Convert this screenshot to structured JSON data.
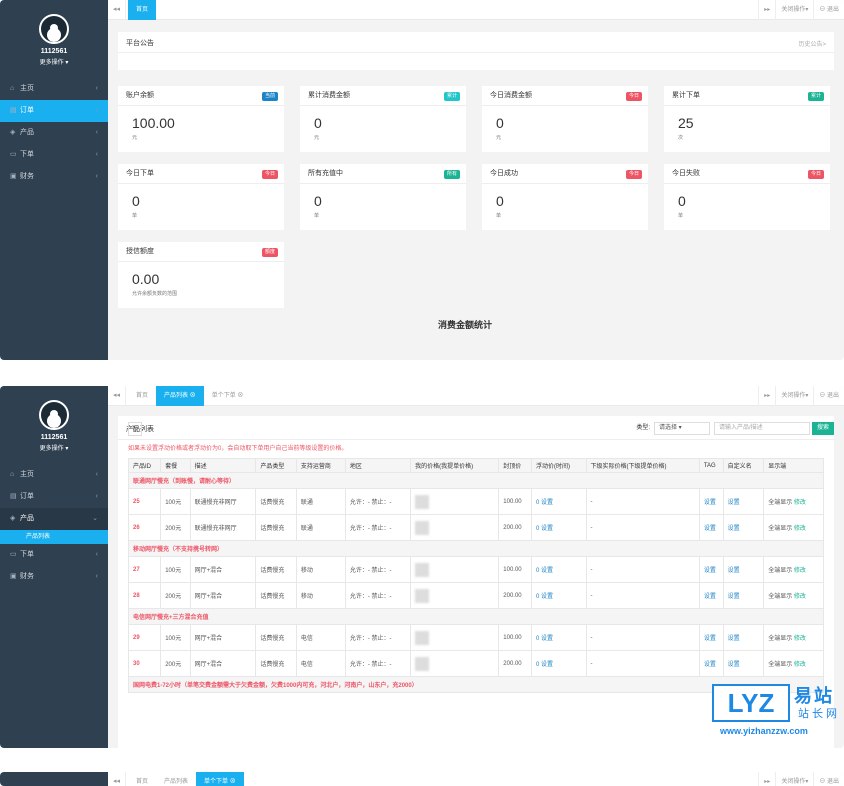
{
  "panel1": {
    "sidebar": {
      "user": "1112561",
      "more": "更多操作 ▾",
      "menu": [
        {
          "icon": "home-icon",
          "glyph": "⌂",
          "label": "主页"
        },
        {
          "icon": "order-icon",
          "glyph": "▤",
          "label": "订单"
        },
        {
          "icon": "cube-icon",
          "glyph": "◈",
          "label": "产品"
        },
        {
          "icon": "cart-icon",
          "glyph": "▭",
          "label": "下单"
        },
        {
          "icon": "finance-icon",
          "glyph": "▣",
          "label": "财务"
        }
      ]
    },
    "tabs": [
      "首页"
    ],
    "right": {
      "nav": "▸▸",
      "close_ops": "关闭操作▾",
      "logout": "⊖ 退出"
    },
    "notice": {
      "title": "平台公告",
      "history": "历史公告>"
    },
    "cards": [
      {
        "title": "账户余额",
        "badge": "当前",
        "color": "#1c84c6",
        "value": "100.00",
        "unit": "元"
      },
      {
        "title": "累计消费金额",
        "badge": "累计",
        "color": "#23c6c8",
        "value": "0",
        "unit": "元"
      },
      {
        "title": "今日消费金额",
        "badge": "今日",
        "color": "#ed5565",
        "value": "0",
        "unit": "元"
      },
      {
        "title": "累计下单",
        "badge": "累计",
        "color": "#1ab394",
        "value": "25",
        "unit": "次"
      },
      {
        "title": "今日下单",
        "badge": "今日",
        "color": "#ed5565",
        "value": "0",
        "unit": "单"
      },
      {
        "title": "所有充值中",
        "badge": "所有",
        "color": "#1ab394",
        "value": "0",
        "unit": "单"
      },
      {
        "title": "今日成功",
        "badge": "今日",
        "color": "#ed5565",
        "value": "0",
        "unit": "单"
      },
      {
        "title": "今日失败",
        "badge": "今日",
        "color": "#ed5565",
        "value": "0",
        "unit": "单"
      },
      {
        "title": "授信额度",
        "badge": "额度",
        "color": "#ed5565",
        "value": "0.00",
        "unit": "允许余额负数的范围"
      }
    ],
    "stats_title": "消费金额统计"
  },
  "panel2": {
    "tabs": [
      "首页",
      "产品列表 ⊗",
      "单个下单 ⊗"
    ],
    "title": "产品列表",
    "refresh": "↻",
    "filter": {
      "type_label": "类型:",
      "type_value": "请选择",
      "search_placeholder": "请输入产品/描述",
      "search_button": "搜索"
    },
    "warning": "如果未设置浮动价格或者浮动价为0，会自动取下单用户自己当前等级设置的价格。",
    "columns": [
      "产品ID",
      "套餐",
      "描述",
      "产品类型",
      "支持运营商",
      "地区",
      "我的价格(我提单价格)",
      "封顶价",
      "浮动价(时间)",
      "下级实际价格(下级提单价格)",
      "TAG",
      "自定义名",
      "显示端"
    ],
    "groups": [
      {
        "name": "联通网厅慢充（到账慢，请耐心等待）",
        "rows": [
          {
            "id": "25",
            "pkg": "100元",
            "desc": "联通慢充非网厅",
            "type": "话费慢充",
            "op": "联通",
            "region": "允许：- 禁止：-",
            "cap": "100.00",
            "float": "0 设置",
            "sub": "-",
            "tag": "设置",
            "cname": "设置",
            "show": "全端显示",
            "edit": "修改"
          },
          {
            "id": "26",
            "pkg": "200元",
            "desc": "联通慢充非网厅",
            "type": "话费慢充",
            "op": "联通",
            "region": "允许：- 禁止：-",
            "cap": "200.00",
            "float": "0 设置",
            "sub": "-",
            "tag": "设置",
            "cname": "设置",
            "show": "全端显示",
            "edit": "修改"
          }
        ]
      },
      {
        "name": "移动网厅慢充（不支持携号转网）",
        "rows": [
          {
            "id": "27",
            "pkg": "100元",
            "desc": "网厅+混合",
            "type": "话费慢充",
            "op": "移动",
            "region": "允许：- 禁止：-",
            "cap": "100.00",
            "float": "0 设置",
            "sub": "-",
            "tag": "设置",
            "cname": "设置",
            "show": "全端显示",
            "edit": "修改"
          },
          {
            "id": "28",
            "pkg": "200元",
            "desc": "网厅+混合",
            "type": "话费慢充",
            "op": "移动",
            "region": "允许：- 禁止：-",
            "cap": "200.00",
            "float": "0 设置",
            "sub": "-",
            "tag": "设置",
            "cname": "设置",
            "show": "全端显示",
            "edit": "修改"
          }
        ]
      },
      {
        "name": "电信网厅慢充+三方混合充值",
        "rows": [
          {
            "id": "29",
            "pkg": "100元",
            "desc": "网厅+混合",
            "type": "话费慢充",
            "op": "电信",
            "region": "允许：- 禁止：-",
            "cap": "100.00",
            "float": "0 设置",
            "sub": "-",
            "tag": "设置",
            "cname": "设置",
            "show": "全端显示",
            "edit": "修改"
          },
          {
            "id": "30",
            "pkg": "200元",
            "desc": "网厅+混合",
            "type": "话费慢充",
            "op": "电信",
            "region": "允许：- 禁止：-",
            "cap": "200.00",
            "float": "0 设置",
            "sub": "-",
            "tag": "设置",
            "cname": "设置",
            "show": "全端显示",
            "edit": "修改"
          }
        ]
      },
      {
        "name": "国网电费1-72小时（单笔交费金额需大于欠费金额，欠费1000内可充，河北户，河南户，山东户，充2000）",
        "rows": []
      }
    ],
    "submenu": "产品列表"
  },
  "panel3": {
    "tabs": [
      "首页",
      "产品列表",
      "单个下单 ⊗"
    ]
  },
  "watermark": {
    "logo": "LYZ",
    "cn": "易站",
    "cn2": "站长网",
    "url": "www.yizhanzzw.com"
  }
}
